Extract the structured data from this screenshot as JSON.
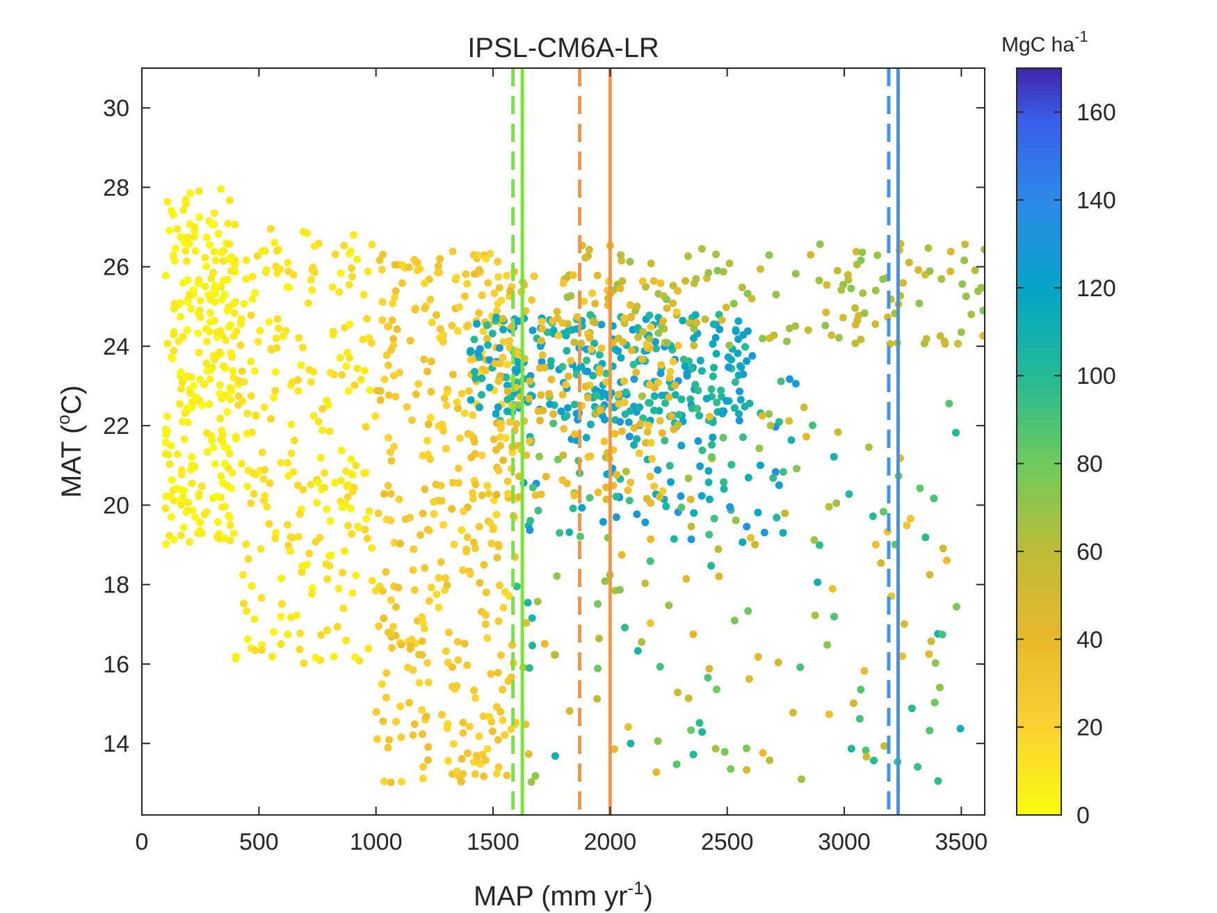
{
  "chart_data": {
    "type": "scatter",
    "title": "IPSL-CM6A-LR",
    "xlabel": "MAP (mm yr",
    "xlabel_sup": "-1",
    "xlabel_suffix": ")",
    "ylabel": "MAT (",
    "ylabel_sup": "o",
    "ylabel_suffix": "C)",
    "xlim": [
      0,
      3600
    ],
    "ylim": [
      12.2,
      31
    ],
    "x_ticks": [
      "0",
      "500",
      "1000",
      "1500",
      "2000",
      "2500",
      "3000",
      "3500"
    ],
    "x_tick_values": [
      0,
      500,
      1000,
      1500,
      2000,
      2500,
      3000,
      3500
    ],
    "y_ticks": [
      "14",
      "16",
      "18",
      "20",
      "22",
      "24",
      "26",
      "28",
      "30"
    ],
    "y_tick_values": [
      14,
      16,
      18,
      20,
      22,
      24,
      26,
      28,
      30
    ],
    "grid": false,
    "colorbar": {
      "label": "MgC ha",
      "label_sup": "-1",
      "range": [
        0,
        170
      ],
      "ticks": [
        "0",
        "20",
        "40",
        "60",
        "80",
        "100",
        "120",
        "140",
        "160"
      ],
      "tick_values": [
        0,
        20,
        40,
        60,
        80,
        100,
        120,
        140,
        160
      ],
      "colormap": "parula-reversed"
    },
    "vertical_lines": [
      {
        "x": 1585,
        "color": "#7de33a",
        "style": "dashed"
      },
      {
        "x": 1625,
        "color": "#7de33a",
        "style": "solid"
      },
      {
        "x": 1870,
        "color": "#f4963c",
        "style": "dashed"
      },
      {
        "x": 2000,
        "color": "#f4963c",
        "style": "solid"
      },
      {
        "x": 3190,
        "color": "#3d96ea",
        "style": "dashed"
      },
      {
        "x": 3230,
        "color": "#3d96ea",
        "style": "solid"
      }
    ],
    "series": [
      {
        "points_by_cluster": [
          {
            "x_range": [
              100,
              400
            ],
            "y_range": [
              19,
              28
            ],
            "c_range": [
              0,
              10
            ],
            "n": 260
          },
          {
            "x_range": [
              400,
              1000
            ],
            "y_range": [
              16,
              27
            ],
            "c_range": [
              3,
              18
            ],
            "n": 260
          },
          {
            "x_range": [
              1000,
              1600
            ],
            "y_range": [
              13,
              26.5
            ],
            "c_range": [
              15,
              35
            ],
            "n": 380
          },
          {
            "x_range": [
              1400,
              2600
            ],
            "y_range": [
              22,
              24.8
            ],
            "c_range": [
              95,
              130
            ],
            "n": 260
          },
          {
            "x_range": [
              1600,
              2800
            ],
            "y_range": [
              19,
              24
            ],
            "c_range": [
              90,
              135
            ],
            "n": 110
          },
          {
            "x_range": [
              1800,
              3600
            ],
            "y_range": [
              24,
              26.6
            ],
            "c_range": [
              45,
              75
            ],
            "n": 150
          },
          {
            "x_range": [
              1600,
              3500
            ],
            "y_range": [
              13,
              23
            ],
            "c_range": [
              30,
              110
            ],
            "n": 180
          },
          {
            "x_range": [
              1500,
              2300
            ],
            "y_range": [
              20,
              26
            ],
            "c_range": [
              25,
              45
            ],
            "n": 160
          }
        ]
      }
    ],
    "marker_color_note": "colors encode carbon, MgC ha-1"
  }
}
